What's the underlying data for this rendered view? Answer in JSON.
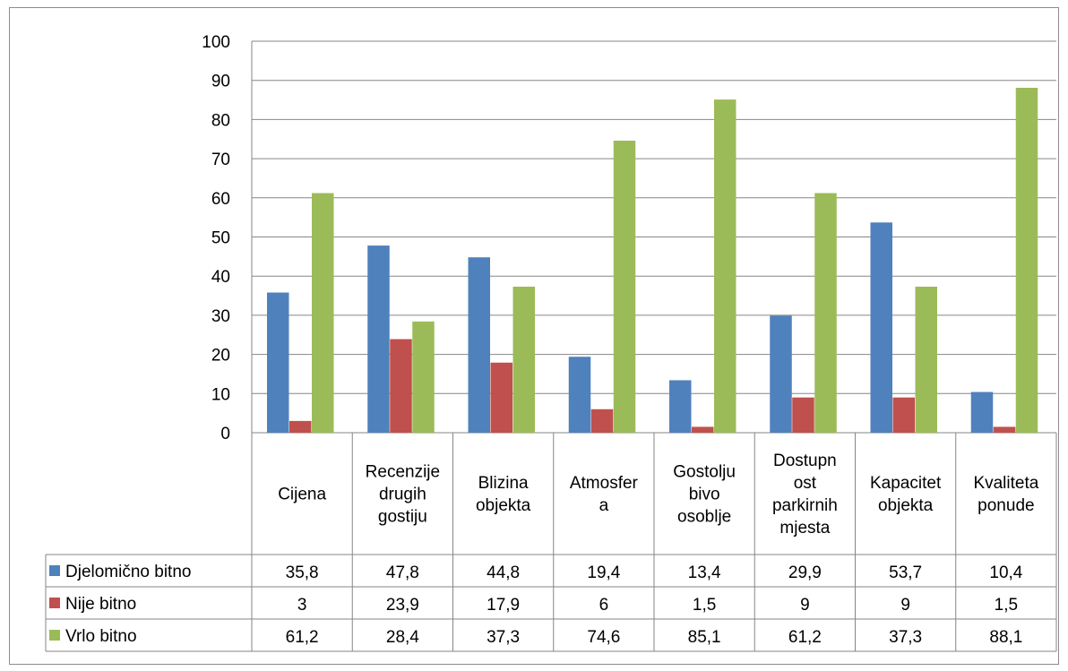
{
  "chart_data": {
    "type": "bar",
    "title": "",
    "xlabel": "",
    "ylabel": "",
    "ylim": [
      0,
      100
    ],
    "yticks": [
      0,
      10,
      20,
      30,
      40,
      50,
      60,
      70,
      80,
      90,
      100
    ],
    "grid": true,
    "legend_placement": "in data table (left column)",
    "categories": [
      "Cijena",
      "Recenzije drugih gostiju",
      "Blizina objekta",
      "Atmosfera",
      "Gostoljubivo osoblje",
      "Dostupnost parkirnih mjesta",
      "Kapacitet objekta",
      "Kvaliteta ponude"
    ],
    "category_lines": [
      [
        "Cijena"
      ],
      [
        "Recenzije",
        "drugih",
        "gostiju"
      ],
      [
        "Blizina",
        "objekta"
      ],
      [
        "Atmosfer",
        "a"
      ],
      [
        "Gostolju",
        "bivo",
        "osoblje"
      ],
      [
        "Dostupn",
        "ost",
        "parkirnih",
        "mjesta"
      ],
      [
        "Kapacitet",
        "objekta"
      ],
      [
        "Kvaliteta",
        "ponude"
      ]
    ],
    "series": [
      {
        "name": "Djelomično bitno",
        "color": "#4f81bd",
        "values": [
          35.8,
          47.8,
          44.8,
          19.4,
          13.4,
          29.9,
          53.7,
          10.4
        ],
        "labels": [
          "35,8",
          "47,8",
          "44,8",
          "19,4",
          "13,4",
          "29,9",
          "53,7",
          "10,4"
        ]
      },
      {
        "name": "Nije bitno",
        "color": "#c0504d",
        "values": [
          3,
          23.9,
          17.9,
          6,
          1.5,
          9,
          9,
          1.5
        ],
        "labels": [
          "3",
          "23,9",
          "17,9",
          "6",
          "1,5",
          "9",
          "9",
          "1,5"
        ]
      },
      {
        "name": "Vrlo bitno",
        "color": "#9bbb59",
        "values": [
          61.2,
          28.4,
          37.3,
          74.6,
          85.1,
          61.2,
          37.3,
          88.1
        ],
        "labels": [
          "61,2",
          "28,4",
          "37,3",
          "74,6",
          "85,1",
          "61,2",
          "37,3",
          "88,1"
        ]
      }
    ]
  }
}
